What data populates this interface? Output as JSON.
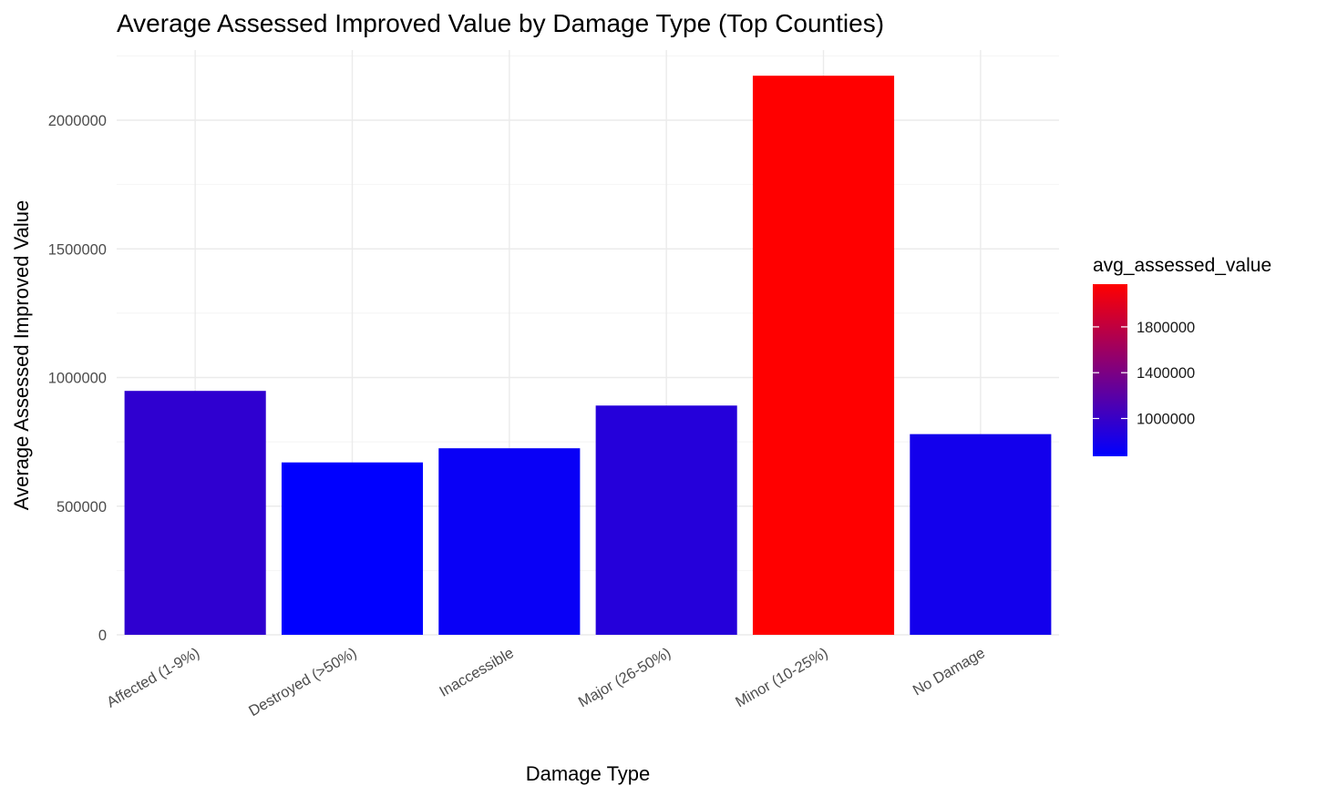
{
  "chart_data": {
    "type": "bar",
    "title": "Average Assessed Improved Value by Damage Type (Top Counties)",
    "xlabel": "Damage Type",
    "ylabel": "Average Assessed Improved Value",
    "categories": [
      "Affected (1-9%)",
      "Destroyed (>50%)",
      "Inaccessible",
      "Major (26-50%)",
      "Minor (10-25%)",
      "No Damage"
    ],
    "values": [
      948000,
      670000,
      725000,
      891000,
      2173000,
      780000
    ],
    "ylim": [
      0,
      2250000
    ],
    "yticks": [
      0,
      500000,
      1000000,
      1500000,
      2000000
    ],
    "ytick_labels": [
      "0",
      "500000",
      "1000000",
      "1500000",
      "2000000"
    ],
    "grid": true,
    "legend": {
      "title": "avg_assessed_value",
      "placement": "right",
      "type": "colorbar",
      "range": [
        670000,
        2173000
      ],
      "ticks": [
        1000000,
        1400000,
        1800000
      ],
      "tick_labels": [
        "1000000",
        "1400000",
        "1800000"
      ],
      "low_color": "#0000ff",
      "high_color": "#ff0000"
    }
  }
}
